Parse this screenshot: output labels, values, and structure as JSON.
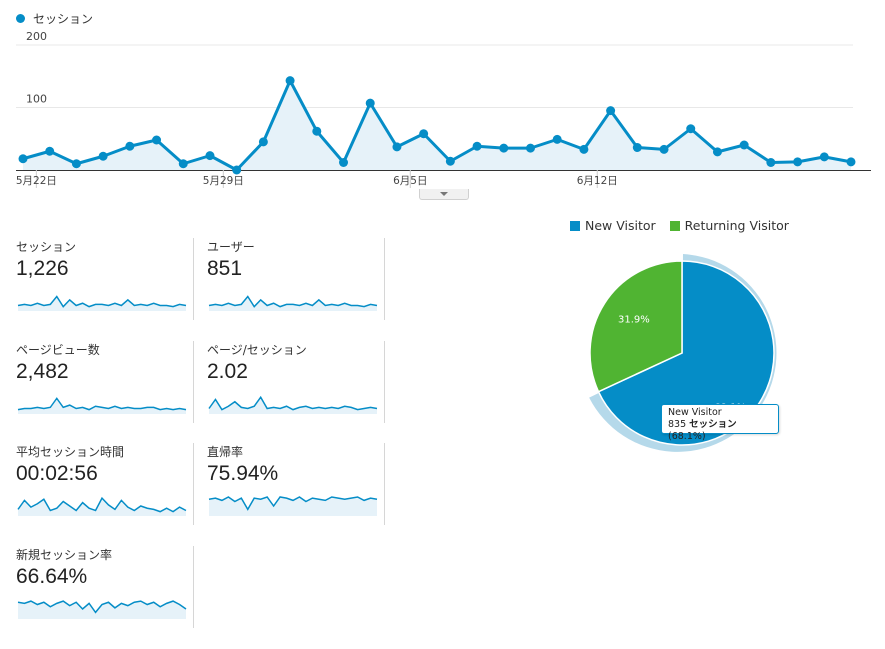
{
  "chart_legend": {
    "label": "セッション",
    "color": "#058dc7"
  },
  "chart_data": [
    {
      "type": "area",
      "series": [
        {
          "name": "セッション",
          "values": [
            18,
            30,
            10,
            22,
            38,
            48,
            10,
            23,
            0,
            45,
            143,
            62,
            12,
            107,
            37,
            58,
            14,
            38,
            35,
            35,
            49,
            33,
            95,
            36,
            33,
            66,
            29,
            40,
            12,
            13,
            21,
            13
          ]
        }
      ],
      "x_labels": [
        {
          "index": 0.5,
          "label": "5月22日"
        },
        {
          "index": 7.5,
          "label": "5月29日"
        },
        {
          "index": 14.5,
          "label": "6月5日"
        },
        {
          "index": 21.5,
          "label": "6月12日"
        }
      ],
      "y_ticks": [
        100,
        200
      ],
      "ylim": [
        0,
        200
      ],
      "grid": true,
      "color": "#058dc7"
    },
    {
      "type": "pie",
      "categories": [
        "New Visitor",
        "Returning Visitor"
      ],
      "values": [
        68.1,
        31.9
      ],
      "labels": [
        "68.1%",
        "31.9%"
      ],
      "colors": [
        "#058dc7",
        "#50b432"
      ],
      "legend": "top"
    }
  ],
  "metrics": [
    {
      "label": "セッション",
      "value": "1,226",
      "spark": [
        4,
        5,
        4,
        6,
        4,
        5,
        12,
        3,
        9,
        4,
        6,
        3,
        5,
        5,
        4,
        6,
        4,
        9,
        4,
        5,
        4,
        6,
        4,
        4,
        3,
        5,
        4
      ]
    },
    {
      "label": "ユーザー",
      "value": "851",
      "spark": [
        4,
        5,
        4,
        6,
        4,
        5,
        12,
        3,
        9,
        4,
        6,
        3,
        5,
        5,
        4,
        6,
        4,
        9,
        4,
        5,
        4,
        6,
        4,
        4,
        3,
        5,
        4
      ]
    },
    {
      "label": "ページビュー数",
      "value": "2,482",
      "spark": [
        3,
        4,
        4,
        5,
        4,
        5,
        13,
        5,
        7,
        4,
        5,
        3,
        6,
        5,
        4,
        6,
        4,
        5,
        4,
        4,
        5,
        5,
        3,
        4,
        3,
        4,
        3
      ]
    },
    {
      "label": "ページ/セッション",
      "value": "2.02",
      "spark": [
        4,
        12,
        3,
        6,
        10,
        5,
        4,
        6,
        14,
        4,
        5,
        4,
        6,
        3,
        5,
        6,
        4,
        5,
        4,
        5,
        4,
        6,
        5,
        3,
        4,
        5,
        4
      ]
    },
    {
      "label": "平均セッション時間",
      "value": "00:02:56",
      "spark": [
        5,
        13,
        7,
        10,
        14,
        4,
        6,
        12,
        8,
        4,
        11,
        6,
        4,
        15,
        9,
        5,
        13,
        7,
        4,
        8,
        6,
        5,
        3,
        6,
        3,
        7,
        4
      ]
    },
    {
      "label": "直帰率",
      "value": "75.94%",
      "spark": [
        14,
        15,
        13,
        16,
        12,
        15,
        5,
        15,
        14,
        16,
        8,
        16,
        15,
        13,
        16,
        12,
        15,
        14,
        13,
        16,
        15,
        14,
        15,
        16,
        13,
        15,
        14
      ]
    },
    {
      "label": "新規セッション率",
      "value": "66.64%",
      "spark": [
        14,
        13,
        15,
        12,
        14,
        10,
        13,
        15,
        11,
        14,
        8,
        13,
        5,
        12,
        14,
        9,
        13,
        11,
        14,
        15,
        12,
        14,
        10,
        13,
        15,
        12,
        8
      ]
    }
  ],
  "pie_legend": [
    {
      "label": "New Visitor",
      "color": "#058dc7"
    },
    {
      "label": "Returning Visitor",
      "color": "#50b432"
    }
  ],
  "tooltip": {
    "title": "New Visitor",
    "count": "835",
    "unit": "セッション",
    "pct": "(68.1%)"
  }
}
